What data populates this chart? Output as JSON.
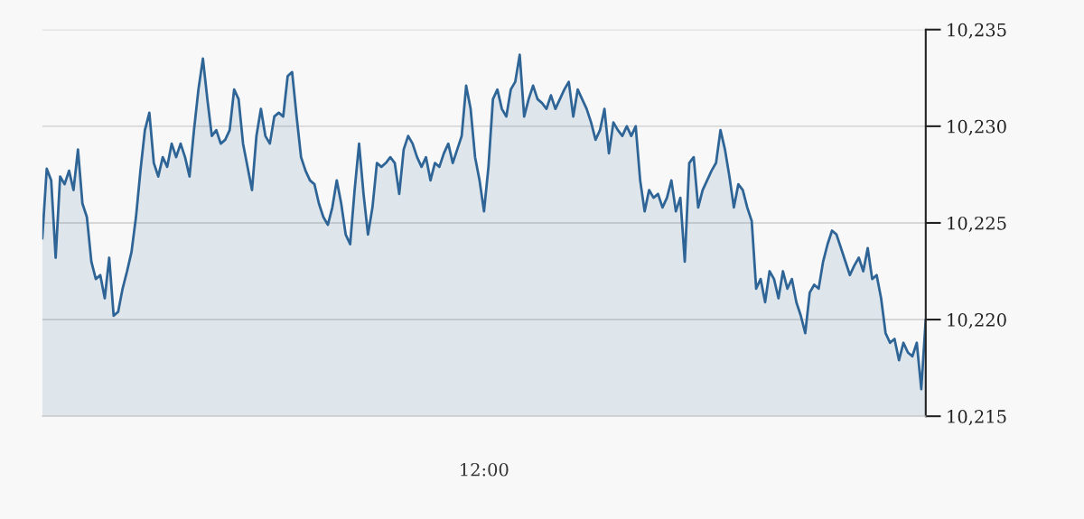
{
  "chart_data": {
    "type": "area",
    "annotations": [
      "12:00"
    ],
    "categories": [
      null,
      null,
      null,
      null,
      null,
      null,
      null,
      null,
      null,
      null,
      null,
      null,
      null,
      null,
      null,
      null,
      null,
      null,
      null,
      null,
      null,
      null,
      null,
      null,
      null,
      null,
      null,
      null,
      null,
      null,
      null,
      null,
      null,
      null,
      null,
      null,
      null,
      null,
      null,
      null,
      null,
      null,
      null,
      null,
      null,
      null,
      null,
      null,
      null,
      null,
      null,
      null,
      null,
      null,
      null,
      null,
      null,
      null,
      null,
      null,
      null,
      null,
      null,
      null,
      null,
      null,
      null,
      null,
      null,
      null,
      null,
      null,
      null,
      null,
      null,
      null,
      null,
      null,
      null,
      null,
      null,
      null,
      null,
      null,
      null,
      null,
      null,
      null,
      null,
      null,
      null,
      null,
      null,
      null,
      null,
      null,
      null,
      null,
      null,
      null,
      null,
      null,
      null,
      null,
      null,
      null,
      null,
      null,
      null,
      null,
      null,
      null,
      null,
      null,
      null,
      null,
      null,
      null,
      null,
      null,
      null,
      null,
      null,
      null,
      null,
      null,
      null,
      null,
      null,
      null,
      null,
      null,
      null,
      null,
      null,
      null,
      null,
      null,
      null,
      null,
      null,
      null,
      null,
      null,
      null,
      null,
      null,
      null,
      null,
      null,
      null,
      null,
      null,
      null,
      null,
      null,
      null,
      null,
      null,
      null,
      null,
      null,
      null,
      null,
      null,
      null,
      null,
      null,
      null,
      null,
      null,
      null,
      null,
      null,
      null,
      null,
      null,
      null,
      null,
      null,
      null,
      null,
      null,
      null,
      null,
      null,
      null,
      null,
      null,
      null,
      null,
      null,
      null,
      null,
      null,
      null,
      null,
      null,
      null
    ],
    "series": [
      {
        "color": "#2f6596",
        "values": [
          10224.2,
          10227.8,
          10227.2,
          10223.2,
          10227.4,
          10227.0,
          10227.7,
          10226.7,
          10228.8,
          10226.0,
          10225.3,
          10223.0,
          10222.1,
          10222.3,
          10221.1,
          10223.2,
          10220.2,
          10220.4,
          10221.6,
          10222.5,
          10223.5,
          10225.3,
          10227.7,
          10229.8,
          10230.7,
          10228.1,
          10227.4,
          10228.4,
          10227.9,
          10229.1,
          10228.4,
          10229.1,
          10228.4,
          10227.4,
          10229.8,
          10231.9,
          10233.5,
          10231.4,
          10229.5,
          10229.8,
          10229.1,
          10229.3,
          10229.8,
          10231.9,
          10231.4,
          10229.1,
          10227.9,
          10226.7,
          10229.5,
          10230.9,
          10229.5,
          10229.1,
          10230.5,
          10230.7,
          10230.5,
          10232.6,
          10232.8,
          10230.5,
          10228.4,
          10227.7,
          10227.2,
          10227.0,
          10226.0,
          10225.3,
          10224.9,
          10225.8,
          10227.2,
          10226.0,
          10224.4,
          10223.9,
          10226.7,
          10229.1,
          10226.5,
          10224.4,
          10225.8,
          10228.1,
          10227.9,
          10228.1,
          10228.4,
          10228.1,
          10226.5,
          10228.8,
          10229.5,
          10229.1,
          10228.4,
          10227.9,
          10228.4,
          10227.2,
          10228.1,
          10227.9,
          10228.6,
          10229.1,
          10228.1,
          10228.8,
          10229.5,
          10232.1,
          10230.9,
          10228.4,
          10227.2,
          10225.6,
          10227.9,
          10231.4,
          10231.9,
          10230.9,
          10230.5,
          10231.9,
          10232.3,
          10233.7,
          10230.5,
          10231.4,
          10232.1,
          10231.4,
          10231.2,
          10230.9,
          10231.6,
          10230.9,
          10231.4,
          10231.9,
          10232.3,
          10230.5,
          10231.9,
          10231.4,
          10230.9,
          10230.2,
          10229.3,
          10229.8,
          10230.9,
          10228.6,
          10230.2,
          10229.8,
          10229.5,
          10230.0,
          10229.5,
          10230.0,
          10227.2,
          10225.6,
          10226.7,
          10226.3,
          10226.5,
          10225.8,
          10226.3,
          10227.2,
          10225.6,
          10226.3,
          10223.0,
          10228.1,
          10228.4,
          10225.8,
          10226.7,
          10227.2,
          10227.7,
          10228.1,
          10229.8,
          10228.8,
          10227.4,
          10225.8,
          10227.0,
          10226.7,
          10225.8,
          10225.1,
          10221.6,
          10222.1,
          10220.9,
          10222.5,
          10222.1,
          10221.1,
          10222.5,
          10221.6,
          10222.1,
          10220.9,
          10220.2,
          10219.3,
          10221.4,
          10221.8,
          10221.6,
          10223.0,
          10223.9,
          10224.6,
          10224.4,
          10223.7,
          10223.0,
          10222.3,
          10222.8,
          10223.2,
          10222.5,
          10223.7,
          10222.1,
          10222.3,
          10221.1,
          10219.3,
          10218.8,
          10219.0,
          10217.9,
          10218.8,
          10218.3,
          10218.1,
          10218.8,
          10216.4,
          10220.0
        ]
      }
    ],
    "ylim": [
      10215,
      10235
    ],
    "yticks": [
      {
        "value": 10215,
        "label": "10,215"
      },
      {
        "value": 10220,
        "label": "10,220"
      },
      {
        "value": 10225,
        "label": "10,225"
      },
      {
        "value": 10230,
        "label": "10,230"
      },
      {
        "value": 10235,
        "label": "10,235"
      }
    ],
    "grid": "y",
    "line_style": "solid",
    "marker": "none"
  }
}
